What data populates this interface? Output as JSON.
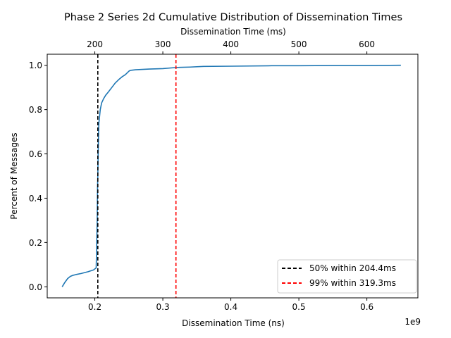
{
  "chart_data": {
    "type": "line",
    "title": "Phase 2 Series 2d Cumulative Distribution of Dissemination Times",
    "xlabel": "Dissemination Time (ns)",
    "xlabel_top": "Dissemination Time (ms)",
    "ylabel": "Percent of Messages",
    "x_offset_text": "1e9",
    "xlim": [
      130000000,
      675000000
    ],
    "ylim": [
      -0.05,
      1.05
    ],
    "x_ticks": [
      200000000,
      300000000,
      400000000,
      500000000,
      600000000
    ],
    "x_tick_labels": [
      "0.2",
      "0.3",
      "0.4",
      "0.5",
      "0.6"
    ],
    "x_top_ticks": [
      200000000,
      300000000,
      400000000,
      500000000,
      600000000
    ],
    "x_top_tick_labels": [
      "200",
      "300",
      "400",
      "500",
      "600"
    ],
    "y_ticks": [
      0,
      0.2,
      0.4,
      0.6,
      0.8,
      1.0
    ],
    "y_tick_labels": [
      "0.0",
      "0.2",
      "0.4",
      "0.6",
      "0.8",
      "1.0"
    ],
    "grid": false,
    "legend_position": "lower-right",
    "series": [
      {
        "color": "#1f77b4",
        "x": [
          152000000,
          156000000,
          160000000,
          164000000,
          168000000,
          172000000,
          180000000,
          190000000,
          198000000,
          202000000,
          203500000,
          204000000,
          204400000,
          205000000,
          206000000,
          208000000,
          210000000,
          213000000,
          216000000,
          220000000,
          225000000,
          230000000,
          235000000,
          240000000,
          245000000,
          250000000,
          252000000,
          260000000,
          280000000,
          300000000,
          319300000,
          340000000,
          360000000,
          400000000,
          460000000,
          500000000,
          550000000,
          600000000,
          650000000
        ],
        "y": [
          0.0,
          0.02,
          0.037,
          0.047,
          0.052,
          0.055,
          0.06,
          0.068,
          0.076,
          0.085,
          0.3,
          0.45,
          0.5,
          0.62,
          0.74,
          0.8,
          0.83,
          0.85,
          0.865,
          0.88,
          0.9,
          0.92,
          0.935,
          0.948,
          0.958,
          0.973,
          0.977,
          0.98,
          0.983,
          0.985,
          0.99,
          0.992,
          0.995,
          0.996,
          0.998,
          0.998,
          0.999,
          0.999,
          1.0
        ]
      }
    ],
    "reference_lines": [
      {
        "x": 204400000,
        "color": "#000000",
        "label": "50%  within 204.4ms"
      },
      {
        "x": 319300000,
        "color": "#ff0000",
        "label": "99%  within 319.3ms"
      }
    ]
  }
}
